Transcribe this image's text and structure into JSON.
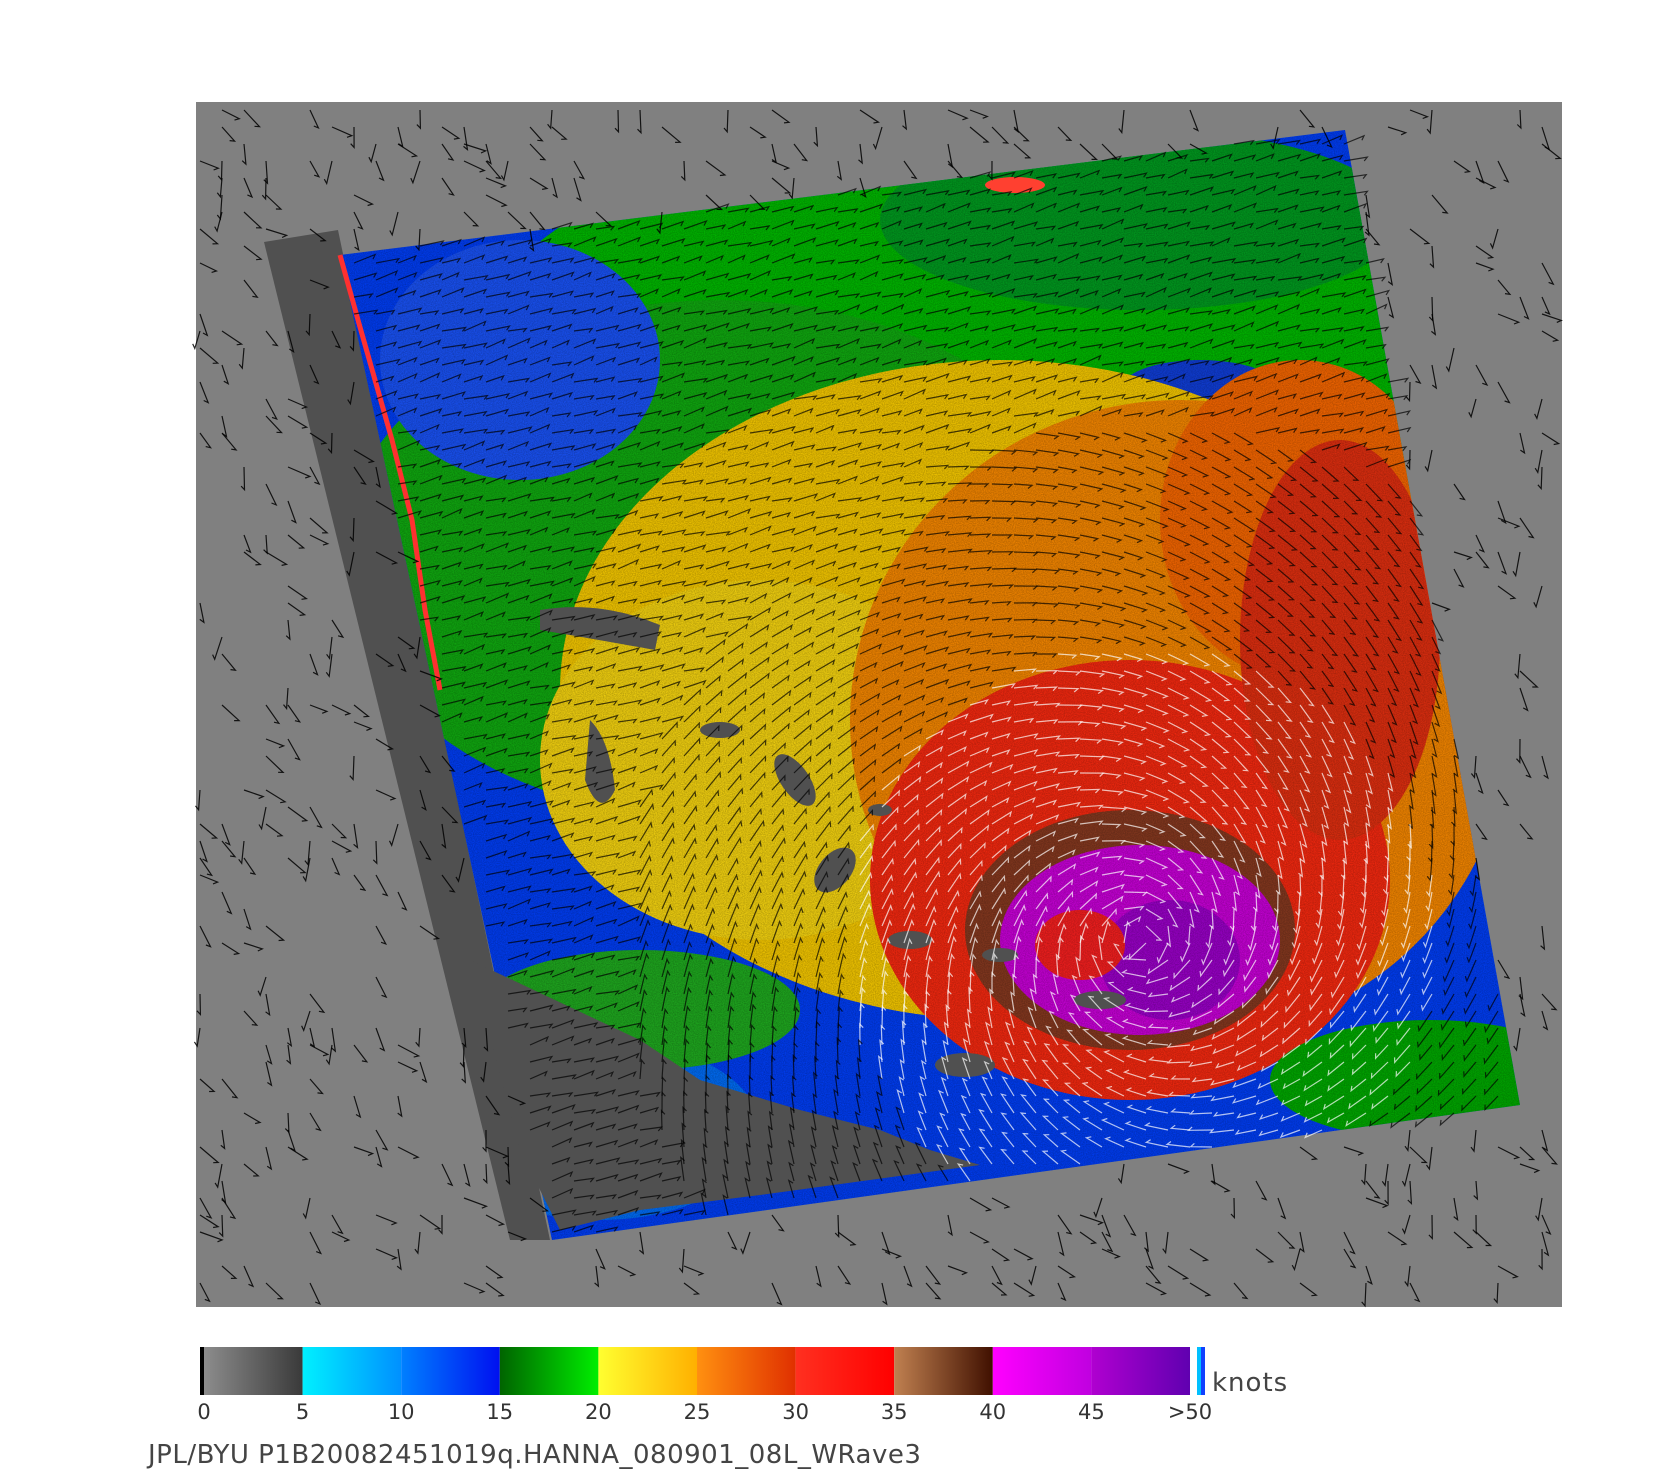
{
  "colors": {
    "no_data": "#808080",
    "land": "#505050",
    "background": "#ffffff",
    "vector_low": "#000000",
    "vector_high": "#ffffff"
  },
  "map": {
    "features": [
      "wind-speed-swath",
      "land-mask",
      "wind-vectors",
      "hurricane-core"
    ]
  },
  "colorbar": {
    "units": "knots",
    "ticks": [
      "0",
      "5",
      "10",
      "15",
      "20",
      "25",
      "30",
      "35",
      "40",
      "45",
      ">50"
    ],
    "segments": [
      {
        "from": 0,
        "to": 5,
        "colors": [
          "#8c8c8c",
          "#3a3a3a"
        ]
      },
      {
        "from": 5,
        "to": 10,
        "colors": [
          "#00f0ff",
          "#0090ff"
        ]
      },
      {
        "from": 10,
        "to": 15,
        "colors": [
          "#0080ff",
          "#0010f0"
        ]
      },
      {
        "from": 15,
        "to": 20,
        "colors": [
          "#006400",
          "#00ee00"
        ]
      },
      {
        "from": 20,
        "to": 25,
        "colors": [
          "#ffff30",
          "#ffb000"
        ]
      },
      {
        "from": 25,
        "to": 30,
        "colors": [
          "#ff9010",
          "#e03000"
        ]
      },
      {
        "from": 30,
        "to": 35,
        "colors": [
          "#ff3020",
          "#ff0000"
        ]
      },
      {
        "from": 35,
        "to": 40,
        "colors": [
          "#c08050",
          "#401000"
        ]
      },
      {
        "from": 40,
        "to": 45,
        "colors": [
          "#ff00ff",
          "#c000e0"
        ]
      },
      {
        "from": 45,
        "to": 50,
        "colors": [
          "#b000d0",
          "#6000b0"
        ]
      }
    ]
  },
  "footer": {
    "source_id": "JPL/BYU  P1B20082451019q.HANNA_080901_08L_WRave3"
  }
}
